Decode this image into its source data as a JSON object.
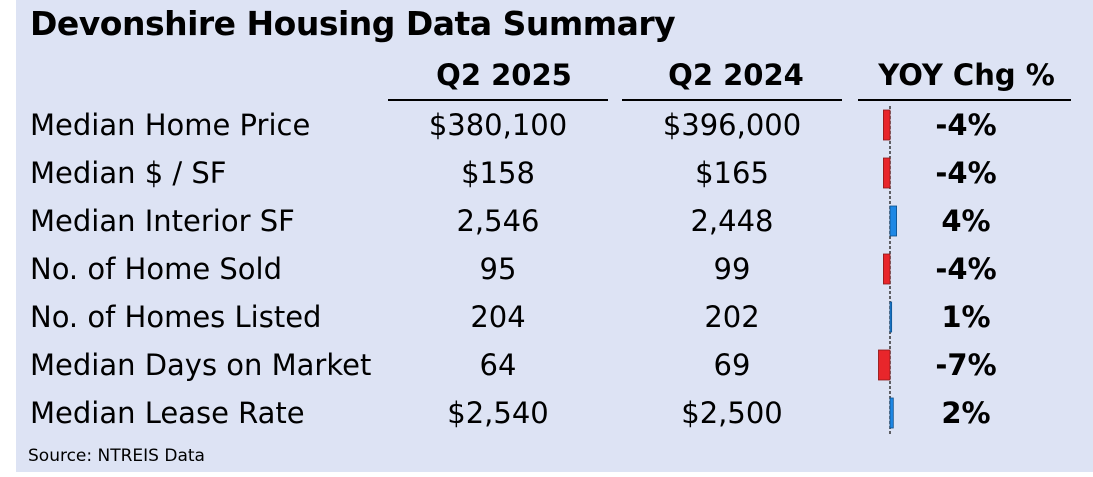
{
  "chart_data": {
    "type": "table",
    "title": "Devonshire Housing Data Summary",
    "columns": [
      "Q2 2025",
      "Q2 2024",
      "YOY Chg %"
    ],
    "rows": [
      {
        "label": "Median Home Price",
        "q2_2025": "$380,100",
        "q2_2024": "$396,000",
        "yoy": "-4%",
        "yoy_value": -4
      },
      {
        "label": "Median $ / SF",
        "q2_2025": "$158",
        "q2_2024": "$165",
        "yoy": "-4%",
        "yoy_value": -4
      },
      {
        "label": "Median Interior SF",
        "q2_2025": "2,546",
        "q2_2024": "2,448",
        "yoy": "4%",
        "yoy_value": 4
      },
      {
        "label": "No. of Home Sold",
        "q2_2025": "95",
        "q2_2024": "99",
        "yoy": "-4%",
        "yoy_value": -4
      },
      {
        "label": "No. of Homes Listed",
        "q2_2025": "204",
        "q2_2024": "202",
        "yoy": "1%",
        "yoy_value": 1
      },
      {
        "label": "Median Days on Market",
        "q2_2025": "64",
        "q2_2024": "69",
        "yoy": "-7%",
        "yoy_value": -7
      },
      {
        "label": "Median Lease Rate",
        "q2_2025": "$2,540",
        "q2_2024": "$2,500",
        "yoy": "2%",
        "yoy_value": 2
      }
    ],
    "source": "Source: NTREIS Data",
    "colors": {
      "negative": "#e8262b",
      "positive": "#1e88e5",
      "background": "#dde3f4"
    }
  }
}
